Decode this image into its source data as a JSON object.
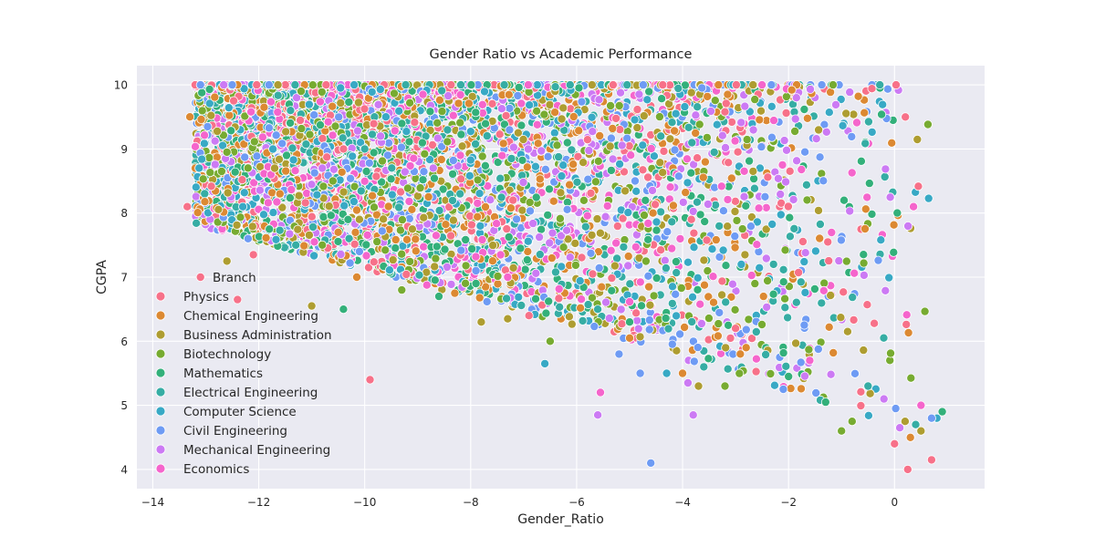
{
  "chart_data": {
    "type": "scatter",
    "title": "Gender Ratio vs Academic Performance",
    "xlabel": "Gender_Ratio",
    "ylabel": "CGPA",
    "xlim": [
      -14.3,
      1.7
    ],
    "ylim": [
      3.7,
      10.3
    ],
    "xticks": [
      -14,
      -12,
      -10,
      -8,
      -6,
      -4,
      -2,
      0
    ],
    "yticks": [
      4,
      5,
      6,
      7,
      8,
      9,
      10
    ],
    "grid": true,
    "legend": {
      "title": "Branch",
      "placement": "lower-left",
      "entries": [
        {
          "name": "Physics",
          "color": "#f77189"
        },
        {
          "name": "Chemical Engineering",
          "color": "#dc8932"
        },
        {
          "name": "Business Administration",
          "color": "#ae9d31"
        },
        {
          "name": "Biotechnology",
          "color": "#77ab31"
        },
        {
          "name": "Mathematics",
          "color": "#33b07a"
        },
        {
          "name": "Electrical Engineering",
          "color": "#36ada4"
        },
        {
          "name": "Computer Science",
          "color": "#38a9c5"
        },
        {
          "name": "Civil Engineering",
          "color": "#6e9bf4"
        },
        {
          "name": "Mechanical Engineering",
          "color": "#cc7af4"
        },
        {
          "name": "Economics",
          "color": "#f565cc"
        }
      ]
    },
    "series_points": [
      {
        "series": "Physics",
        "points": [
          [
            -13.2,
            10.0
          ],
          [
            -13.1,
            7.0
          ],
          [
            -13.35,
            8.1
          ],
          [
            -12.1,
            7.35
          ],
          [
            -12.4,
            6.65
          ],
          [
            -10.4,
            9.0
          ],
          [
            -9.9,
            5.4
          ],
          [
            -7.2,
            8.2
          ],
          [
            -6.9,
            6.4
          ],
          [
            0.0,
            4.4
          ],
          [
            0.25,
            4.0
          ],
          [
            0.7,
            4.15
          ],
          [
            -3.0,
            6.2
          ]
        ]
      },
      {
        "series": "Chemical Engineering",
        "points": [
          [
            -13.3,
            9.5
          ],
          [
            -12.4,
            10.0
          ],
          [
            -11.9,
            9.65
          ],
          [
            -11.6,
            8.3
          ],
          [
            -10.15,
            7.0
          ],
          [
            -10.5,
            7.7
          ],
          [
            -8.3,
            6.75
          ],
          [
            -5.0,
            6.05
          ],
          [
            -4.0,
            5.5
          ],
          [
            -2.8,
            5.9
          ],
          [
            0.3,
            4.5
          ]
        ]
      },
      {
        "series": "Business Administration",
        "points": [
          [
            -12.6,
            7.25
          ],
          [
            -11.7,
            8.7
          ],
          [
            -11.0,
            6.55
          ],
          [
            -10.1,
            7.9
          ],
          [
            -9.1,
            7.75
          ],
          [
            -7.8,
            6.3
          ],
          [
            -7.3,
            6.35
          ],
          [
            -3.7,
            5.3
          ],
          [
            0.2,
            4.75
          ],
          [
            0.5,
            4.6
          ]
        ]
      },
      {
        "series": "Biotechnology",
        "points": [
          [
            -12.6,
            8.95
          ],
          [
            -12.7,
            8.65
          ],
          [
            -11.2,
            9.9
          ],
          [
            -10.8,
            7.5
          ],
          [
            -10.6,
            8.5
          ],
          [
            -9.3,
            6.8
          ],
          [
            -6.5,
            6.0
          ],
          [
            -3.2,
            5.3
          ],
          [
            -1.0,
            4.6
          ],
          [
            -0.8,
            4.75
          ]
        ]
      },
      {
        "series": "Mathematics",
        "points": [
          [
            -11.8,
            7.75
          ],
          [
            -10.4,
            6.5
          ],
          [
            -8.6,
            6.7
          ],
          [
            -7.9,
            6.9
          ],
          [
            -5.0,
            6.3
          ],
          [
            -2.0,
            5.45
          ],
          [
            -1.3,
            5.05
          ],
          [
            0.9,
            4.9
          ]
        ]
      },
      {
        "series": "Electrical Engineering",
        "points": [
          [
            -11.3,
            7.5
          ],
          [
            -11.4,
            9.6
          ],
          [
            -10.0,
            9.0
          ],
          [
            -8.2,
            8.3
          ],
          [
            -5.6,
            6.5
          ],
          [
            -3.6,
            5.6
          ],
          [
            -0.5,
            5.3
          ],
          [
            0.4,
            4.7
          ]
        ]
      },
      {
        "series": "Computer Science",
        "points": [
          [
            -12.3,
            8.1
          ],
          [
            -10.2,
            10.0
          ],
          [
            -9.6,
            9.5
          ],
          [
            -6.6,
            5.65
          ],
          [
            -4.3,
            5.5
          ],
          [
            0.8,
            4.8
          ]
        ]
      },
      {
        "series": "Civil Engineering",
        "points": [
          [
            -13.1,
            10.0
          ],
          [
            -12.5,
            10.0
          ],
          [
            -12.2,
            7.6
          ],
          [
            -10.1,
            7.4
          ],
          [
            -7.9,
            7.1
          ],
          [
            -5.2,
            5.8
          ],
          [
            -4.8,
            5.5
          ],
          [
            -4.6,
            4.1
          ],
          [
            -2.1,
            5.25
          ],
          [
            0.7,
            4.8
          ]
        ]
      },
      {
        "series": "Mechanical Engineering",
        "points": [
          [
            -10.8,
            8.7
          ],
          [
            -9.7,
            9.2
          ],
          [
            -5.6,
            4.85
          ],
          [
            -3.9,
            5.35
          ],
          [
            -3.8,
            4.85
          ],
          [
            0.1,
            4.65
          ],
          [
            -0.2,
            5.1
          ]
        ]
      },
      {
        "series": "Economics",
        "points": [
          [
            -10.95,
            7.55
          ],
          [
            -8.9,
            9.85
          ],
          [
            -5.55,
            5.2
          ],
          [
            -7.3,
            7.0
          ],
          [
            -1.6,
            5.7
          ],
          [
            0.5,
            5.0
          ]
        ]
      }
    ]
  }
}
